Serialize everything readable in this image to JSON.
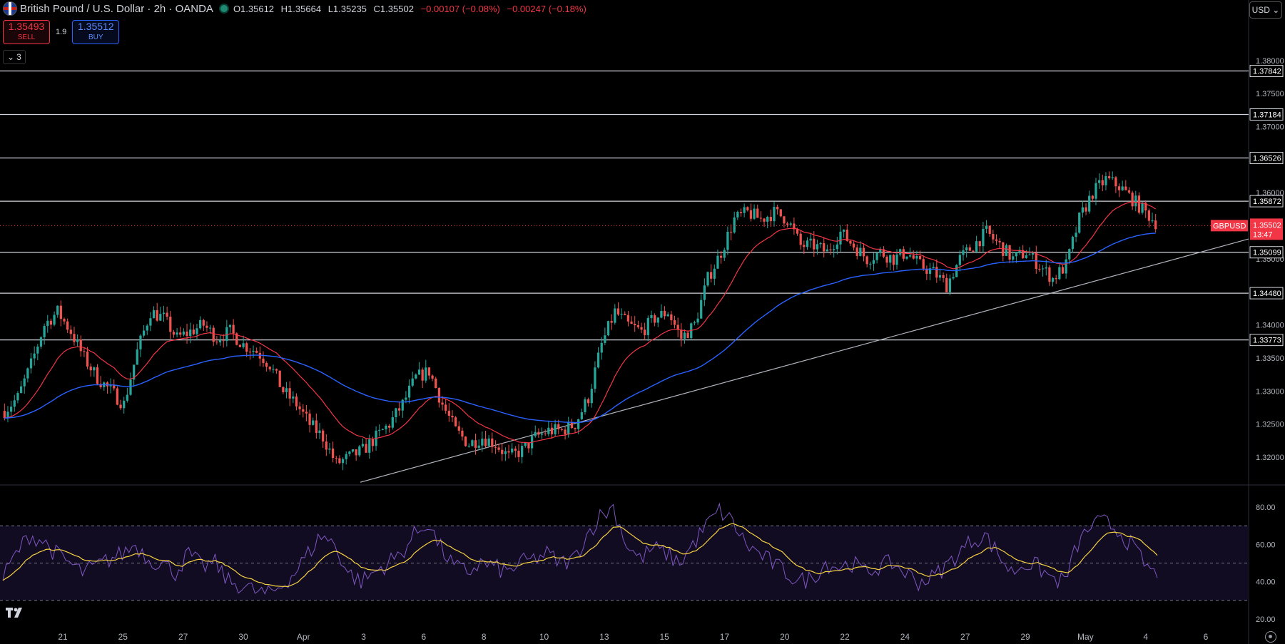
{
  "header": {
    "title": "British Pound / U.S. Dollar · 2h · OANDA",
    "ohlc": {
      "open": "O1.35612",
      "high": "H1.35664",
      "low": "L1.35235",
      "close": "C1.35502",
      "change": "−0.00107 (−0.08%)",
      "change2": "−0.00247 (−0.18%)"
    }
  },
  "trade": {
    "sell_price": "1.35493",
    "sell_label": "SELL",
    "spread": "1.9",
    "buy_price": "1.35512",
    "buy_label": "BUY"
  },
  "indicators_collapse_count": "3",
  "currency": "USD",
  "colors": {
    "up": "#26a69a",
    "down": "#ef5350",
    "ema_fast": "#f23645",
    "ema_slow": "#2962ff",
    "rsi": "#7e57c2",
    "rsi_ma": "#f5d142"
  },
  "chart_data": {
    "type": "candlestick",
    "symbol": "GBPUSD",
    "last_price": "1.35502",
    "countdown": "13:47",
    "ylim": [
      1.316,
      1.387
    ],
    "price_ticks": [
      "1.38000",
      "1.37500",
      "1.37000",
      "1.36000",
      "1.35000",
      "1.34000",
      "1.33500",
      "1.33000",
      "1.32500",
      "1.32000"
    ],
    "horizontal_levels": [
      "1.37842",
      "1.37184",
      "1.36526",
      "1.35872",
      "1.35099",
      "1.34480",
      "1.33773"
    ],
    "time_ticks": [
      "21",
      "25",
      "27",
      "30",
      "Apr",
      "3",
      "6",
      "8",
      "10",
      "13",
      "15",
      "17",
      "20",
      "22",
      "24",
      "27",
      "29",
      "May",
      "4",
      "6"
    ],
    "trendline": [
      [
        0.0,
        1.3162
      ],
      [
        1.0,
        1.353
      ]
    ],
    "price_path": [
      1.327,
      1.329,
      1.334,
      1.34,
      1.342,
      1.339,
      1.335,
      1.332,
      1.33,
      1.328,
      1.336,
      1.342,
      1.341,
      1.338,
      1.339,
      1.34,
      1.338,
      1.339,
      1.337,
      1.336,
      1.334,
      1.33,
      1.328,
      1.325,
      1.323,
      1.319,
      1.32,
      1.321,
      1.323,
      1.325,
      1.328,
      1.332,
      1.333,
      1.328,
      1.324,
      1.322,
      1.323,
      1.322,
      1.32,
      1.321,
      1.323,
      1.324,
      1.324,
      1.325,
      1.329,
      1.337,
      1.342,
      1.34,
      1.339,
      1.341,
      1.342,
      1.338,
      1.34,
      1.347,
      1.351,
      1.356,
      1.357,
      1.356,
      1.357,
      1.356,
      1.352,
      1.352,
      1.351,
      1.354,
      1.352,
      1.35,
      1.351,
      1.35,
      1.351,
      1.349,
      1.348,
      1.346,
      1.35,
      1.352,
      1.354,
      1.352,
      1.35,
      1.351,
      1.349,
      1.347,
      1.349,
      1.356,
      1.36,
      1.362,
      1.361,
      1.359,
      1.357,
      1.355
    ],
    "rsi": {
      "ylim": [
        20,
        85
      ],
      "ticks": [
        "80.00",
        "60.00",
        "40.00",
        "20.00"
      ],
      "levels": [
        70,
        50,
        30
      ],
      "values": [
        42,
        55,
        65,
        62,
        55,
        50,
        45,
        48,
        52,
        55,
        60,
        52,
        50,
        45,
        55,
        48,
        50,
        40,
        38,
        35,
        33,
        38,
        45,
        55,
        65,
        60,
        45,
        40,
        45,
        50,
        55,
        65,
        72,
        58,
        48,
        45,
        50,
        48,
        45,
        50,
        52,
        55,
        50,
        52,
        65,
        75,
        80,
        60,
        52,
        58,
        55,
        50,
        60,
        70,
        78,
        72,
        60,
        55,
        50,
        45,
        40,
        42,
        50,
        48,
        50,
        45,
        48,
        50,
        45,
        40,
        42,
        48,
        55,
        62,
        65,
        55,
        45,
        50,
        48,
        42,
        40,
        60,
        70,
        72,
        68,
        60,
        50,
        42
      ]
    }
  }
}
